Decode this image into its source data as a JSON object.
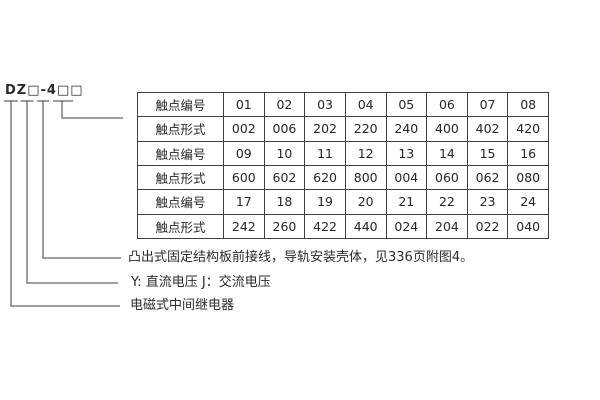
{
  "title": {
    "model_code": "DZ□-4□□"
  },
  "contact_table": {
    "rows": [
      {
        "label": "触点编号",
        "values": [
          "01",
          "02",
          "03",
          "04",
          "05",
          "06",
          "07",
          "08"
        ]
      },
      {
        "label": "触点形式",
        "values": [
          "002",
          "006",
          "202",
          "220",
          "240",
          "400",
          "402",
          "420"
        ]
      },
      {
        "label": "触点编号",
        "values": [
          "09",
          "10",
          "11",
          "12",
          "13",
          "14",
          "15",
          "16"
        ]
      },
      {
        "label": "触点形式",
        "values": [
          "600",
          "602",
          "620",
          "800",
          "004",
          "060",
          "062",
          "080"
        ]
      },
      {
        "label": "触点编号",
        "values": [
          "17",
          "18",
          "19",
          "20",
          "21",
          "22",
          "23",
          "24"
        ]
      },
      {
        "label": "触点形式",
        "values": [
          "242",
          "260",
          "422",
          "440",
          "024",
          "204",
          "022",
          "040"
        ]
      }
    ]
  },
  "notes": {
    "structure_note": "凸出式固定结构板前接线，导轨安装壳体，见336页附图4。",
    "voltage_note": "Y: 直流电压  J：交流电压",
    "type_note": "电磁式中间继电器"
  },
  "colors": {
    "line": "#3f3f3f",
    "text": "#262626",
    "background": "#ffffff"
  }
}
